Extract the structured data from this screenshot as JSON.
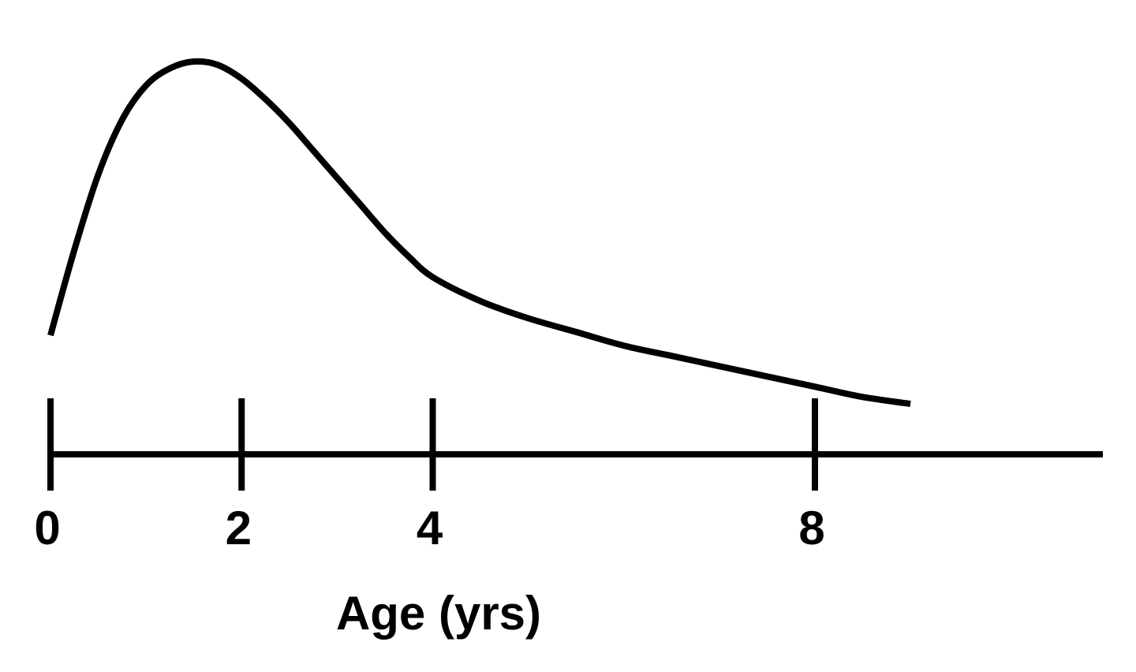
{
  "chart_data": {
    "type": "line",
    "title": "",
    "xlabel": "Age (yrs)",
    "ylabel": "",
    "x_ticks": [
      0,
      2,
      4,
      8
    ],
    "x_tick_labels": [
      "0",
      "2",
      "4",
      "8"
    ],
    "xlim": [
      0,
      9.8
    ],
    "ylim": [
      0,
      1
    ],
    "grid": false,
    "legend": "none",
    "series": [
      {
        "x": [
          0,
          0.25,
          0.5,
          0.75,
          1.0,
          1.25,
          1.5,
          1.75,
          2.0,
          2.25,
          2.5,
          2.75,
          3.0,
          3.25,
          3.5,
          3.75,
          4.0,
          4.5,
          5.0,
          5.5,
          6.0,
          6.5,
          7.0,
          7.5,
          8.0,
          8.5,
          9.0
        ],
        "values": [
          0.2,
          0.45,
          0.67,
          0.83,
          0.93,
          0.98,
          1.0,
          0.99,
          0.95,
          0.89,
          0.82,
          0.74,
          0.66,
          0.58,
          0.5,
          0.43,
          0.37,
          0.3,
          0.25,
          0.21,
          0.17,
          0.14,
          0.11,
          0.08,
          0.05,
          0.02,
          0.0
        ]
      }
    ],
    "colors": {
      "line": "#000000",
      "axis": "#000000"
    }
  }
}
